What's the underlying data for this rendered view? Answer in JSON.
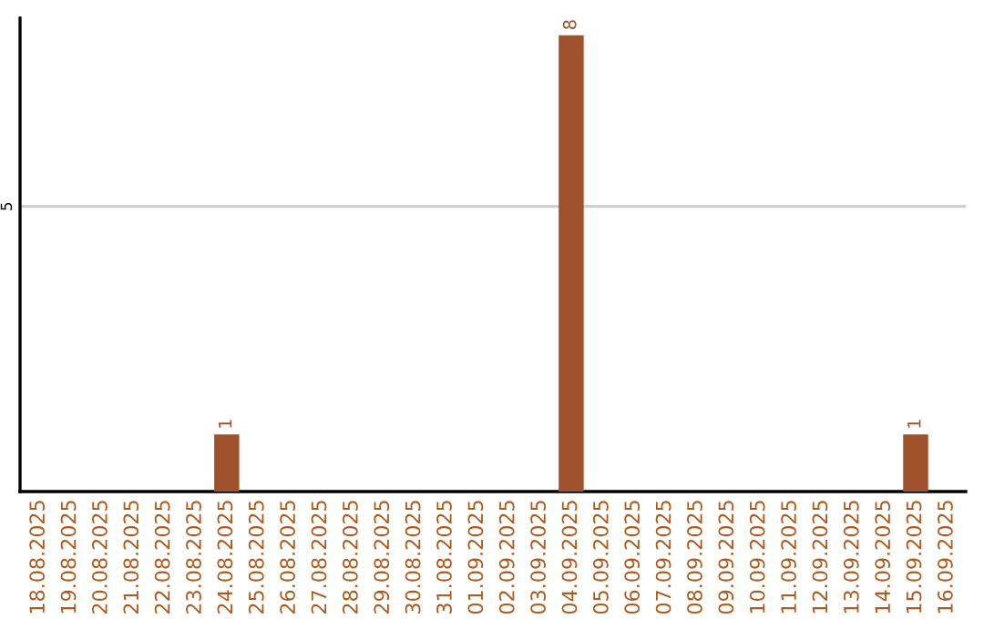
{
  "chart_data": {
    "type": "bar",
    "categories": [
      "18.08.2025",
      "19.08.2025",
      "20.08.2025",
      "21.08.2025",
      "22.08.2025",
      "23.08.2025",
      "24.08.2025",
      "25.08.2025",
      "26.08.2025",
      "27.08.2025",
      "28.08.2025",
      "29.08.2025",
      "30.08.2025",
      "31.08.2025",
      "01.09.2025",
      "02.09.2025",
      "03.09.2025",
      "04.09.2025",
      "05.09.2025",
      "06.09.2025",
      "07.09.2025",
      "08.09.2025",
      "09.09.2025",
      "10.09.2025",
      "11.09.2025",
      "12.09.2025",
      "13.09.2025",
      "14.09.2025",
      "15.09.2025",
      "16.09.2025"
    ],
    "values": [
      0,
      0,
      0,
      0,
      0,
      0,
      1,
      0,
      0,
      0,
      0,
      0,
      0,
      0,
      0,
      0,
      0,
      8,
      0,
      0,
      0,
      0,
      0,
      0,
      0,
      0,
      0,
      0,
      1,
      0
    ],
    "value_labels": [
      null,
      null,
      null,
      null,
      null,
      null,
      "1",
      null,
      null,
      null,
      null,
      null,
      null,
      null,
      null,
      null,
      null,
      "8",
      null,
      null,
      null,
      null,
      null,
      null,
      null,
      null,
      null,
      null,
      "1",
      null
    ],
    "color": "#a0522d",
    "ylim": [
      0,
      8.3
    ],
    "yticks": [
      5
    ],
    "grid": "y",
    "legend": false
  }
}
